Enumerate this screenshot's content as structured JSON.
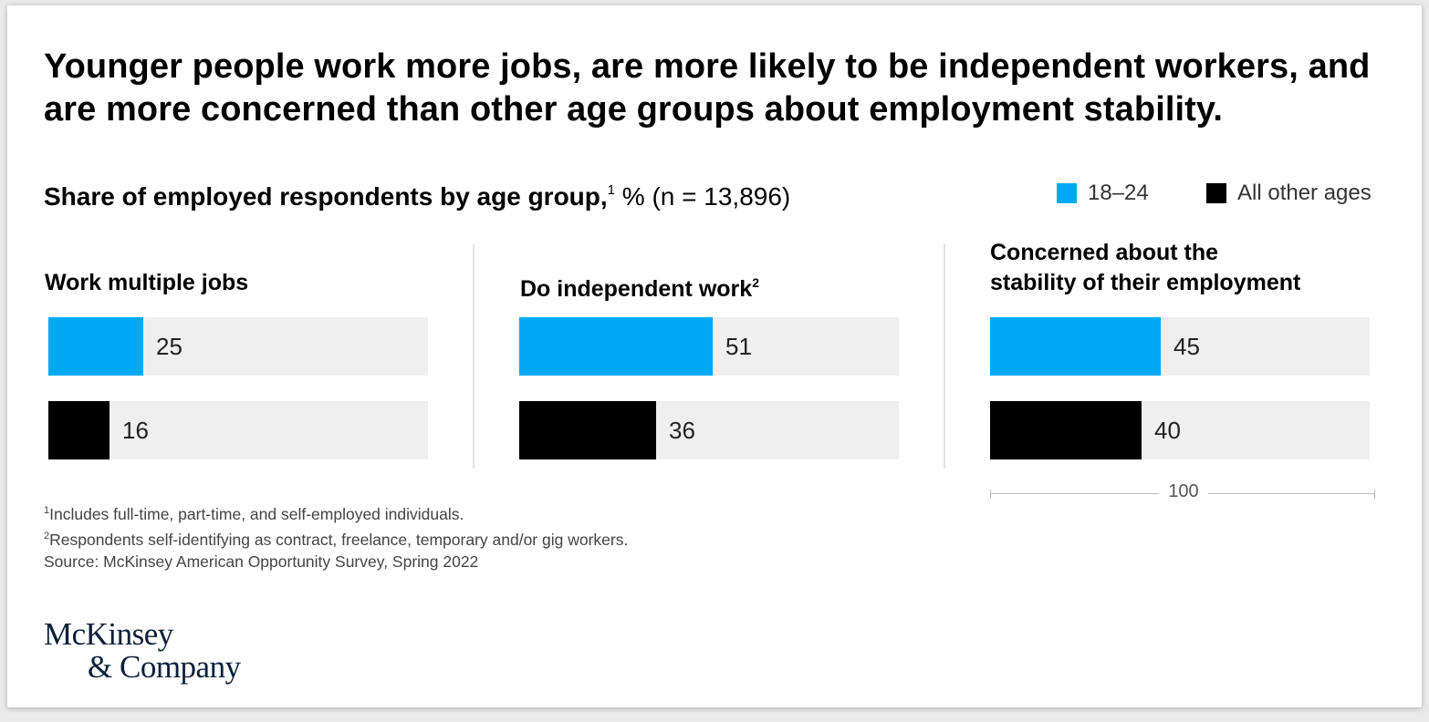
{
  "chart_data": {
    "type": "bar",
    "orientation": "horizontal",
    "title": "Younger people work more jobs, are more likely to be independent workers, and are more concerned than other age groups about employment stability.",
    "subtitle": {
      "bold": "Share of employed respondents by age group,",
      "sup": "1",
      "rest": " % (n = 13,896)"
    },
    "legend": [
      {
        "name": "18–24",
        "color": "#00a9f4"
      },
      {
        "name": "All other ages",
        "color": "#000000"
      }
    ],
    "xlim": [
      0,
      100
    ],
    "scale_label": "100",
    "panels": [
      {
        "title": "Work multiple jobs",
        "title_sup": "",
        "series": [
          {
            "name": "18–24",
            "value": 25,
            "label": "25"
          },
          {
            "name": "All other ages",
            "value": 16,
            "label": "16"
          }
        ]
      },
      {
        "title": "Do independent work",
        "title_sup": "2",
        "series": [
          {
            "name": "18–24",
            "value": 51,
            "label": "51"
          },
          {
            "name": "All other ages",
            "value": 36,
            "label": "36"
          }
        ]
      },
      {
        "title_lines": [
          "Concerned about the",
          "stability of their employment"
        ],
        "title_sup": "",
        "series": [
          {
            "name": "18–24",
            "value": 45,
            "label": "45"
          },
          {
            "name": "All other ages",
            "value": 40,
            "label": "40"
          }
        ]
      }
    ]
  },
  "footnotes": [
    {
      "sup": "1",
      "text": "Includes full-time, part-time, and self-employed individuals."
    },
    {
      "sup": "2",
      "text": "Respondents self-identifying as contract, freelance, temporary and/or gig workers."
    },
    {
      "sup": "",
      "text": " Source: McKinsey American Opportunity Survey, Spring 2022"
    }
  ],
  "logo": {
    "line1": "McKinsey",
    "line2": "& Company"
  }
}
